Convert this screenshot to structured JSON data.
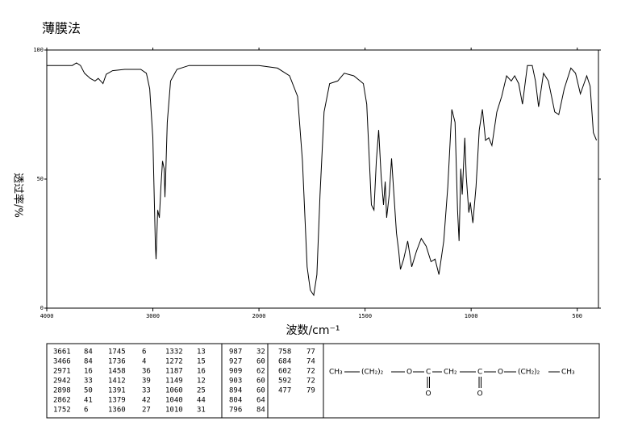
{
  "chart_data": {
    "type": "line",
    "title": "薄膜法",
    "x_label": "波数/cm⁻¹",
    "y_label": "透过率/%",
    "color": "#000000",
    "xscale_change": 2000,
    "xlim": [
      4000,
      400
    ],
    "xticks": [
      4000,
      3000,
      2000,
      1500,
      1000,
      500
    ],
    "ylim": [
      0,
      100
    ],
    "yticks": [
      0,
      50,
      100
    ],
    "x": [
      4000,
      3760,
      3720,
      3682,
      3644,
      3590,
      3545,
      3515,
      3470,
      3440,
      3380,
      3265,
      3114,
      3061,
      3030,
      3000,
      2977,
      2970,
      2955,
      2939,
      2924,
      2909,
      2894,
      2886,
      2879,
      2864,
      2833,
      2773,
      2659,
      2318,
      2000,
      1913,
      1856,
      1818,
      1795,
      1773,
      1758,
      1742,
      1727,
      1712,
      1693,
      1667,
      1629,
      1598,
      1553,
      1508,
      1492,
      1470,
      1458,
      1447,
      1436,
      1424,
      1413,
      1405,
      1398,
      1386,
      1375,
      1364,
      1352,
      1341,
      1333,
      1318,
      1299,
      1280,
      1258,
      1235,
      1212,
      1189,
      1170,
      1152,
      1129,
      1110,
      1091,
      1076,
      1064,
      1057,
      1049,
      1042,
      1030,
      1023,
      1011,
      1004,
      992,
      977,
      962,
      947,
      932,
      917,
      902,
      879,
      856,
      833,
      811,
      795,
      776,
      758,
      735,
      712,
      697,
      682,
      659,
      636,
      606,
      587,
      561,
      530,
      508,
      485,
      455,
      439,
      424,
      409
    ],
    "values": [
      94,
      94,
      95,
      94,
      91,
      89,
      88,
      89,
      87,
      90.6,
      92,
      92.5,
      92.5,
      91,
      85,
      66,
      25,
      19,
      38,
      35,
      47,
      57,
      54,
      43,
      52,
      72,
      88,
      92.5,
      94,
      94,
      94,
      93,
      90,
      82,
      57,
      16,
      7,
      5,
      13,
      44,
      76,
      87,
      88,
      91,
      90,
      87,
      79,
      40,
      38,
      57,
      69,
      51,
      40,
      49,
      35,
      44,
      58,
      44,
      29,
      22,
      15,
      19,
      26,
      16,
      22,
      27,
      24,
      18,
      19,
      13,
      26,
      47,
      77,
      72,
      38,
      26,
      54,
      44,
      66,
      51,
      37,
      41,
      33,
      47,
      69,
      77,
      65,
      66,
      63,
      76,
      82,
      90,
      88,
      90,
      87,
      79,
      94,
      94,
      88,
      78,
      91,
      88,
      76,
      75,
      85,
      93,
      91,
      83,
      90,
      86,
      68,
      65
    ]
  },
  "peak_table": {
    "columns": [
      [
        [
          "3661",
          "84"
        ],
        [
          "3466",
          "84"
        ],
        [
          "2971",
          "16"
        ],
        [
          "2942",
          "33"
        ],
        [
          "2898",
          "50"
        ],
        [
          "2862",
          "41"
        ],
        [
          "1752",
          "6"
        ]
      ],
      [
        [
          "1745",
          "6"
        ],
        [
          "1736",
          "4"
        ],
        [
          "1458",
          "36"
        ],
        [
          "1412",
          "39"
        ],
        [
          "1391",
          "33"
        ],
        [
          "1379",
          "42"
        ],
        [
          "1360",
          "27"
        ]
      ],
      [
        [
          "1332",
          "13"
        ],
        [
          "1272",
          "15"
        ],
        [
          "1187",
          "16"
        ],
        [
          "1149",
          "12"
        ],
        [
          "1060",
          "25"
        ],
        [
          "1040",
          "44"
        ],
        [
          "1010",
          "31"
        ]
      ],
      [
        [
          "987",
          "32"
        ],
        [
          "927",
          "60"
        ],
        [
          "909",
          "62"
        ],
        [
          "903",
          "60"
        ],
        [
          "894",
          "60"
        ],
        [
          "804",
          "64"
        ],
        [
          "796",
          "84"
        ]
      ],
      [
        [
          "758",
          "77"
        ],
        [
          "684",
          "74"
        ],
        [
          "602",
          "72"
        ],
        [
          "592",
          "72"
        ],
        [
          "477",
          "79"
        ]
      ]
    ]
  },
  "structure": {
    "chain": [
      "CH₃",
      "(CH₂)₂",
      "O",
      "C",
      "CH₂",
      "C",
      "O",
      "(CH₂)₂",
      "CH₃"
    ],
    "carbonyl_oxygens": [
      "O",
      "O"
    ]
  }
}
